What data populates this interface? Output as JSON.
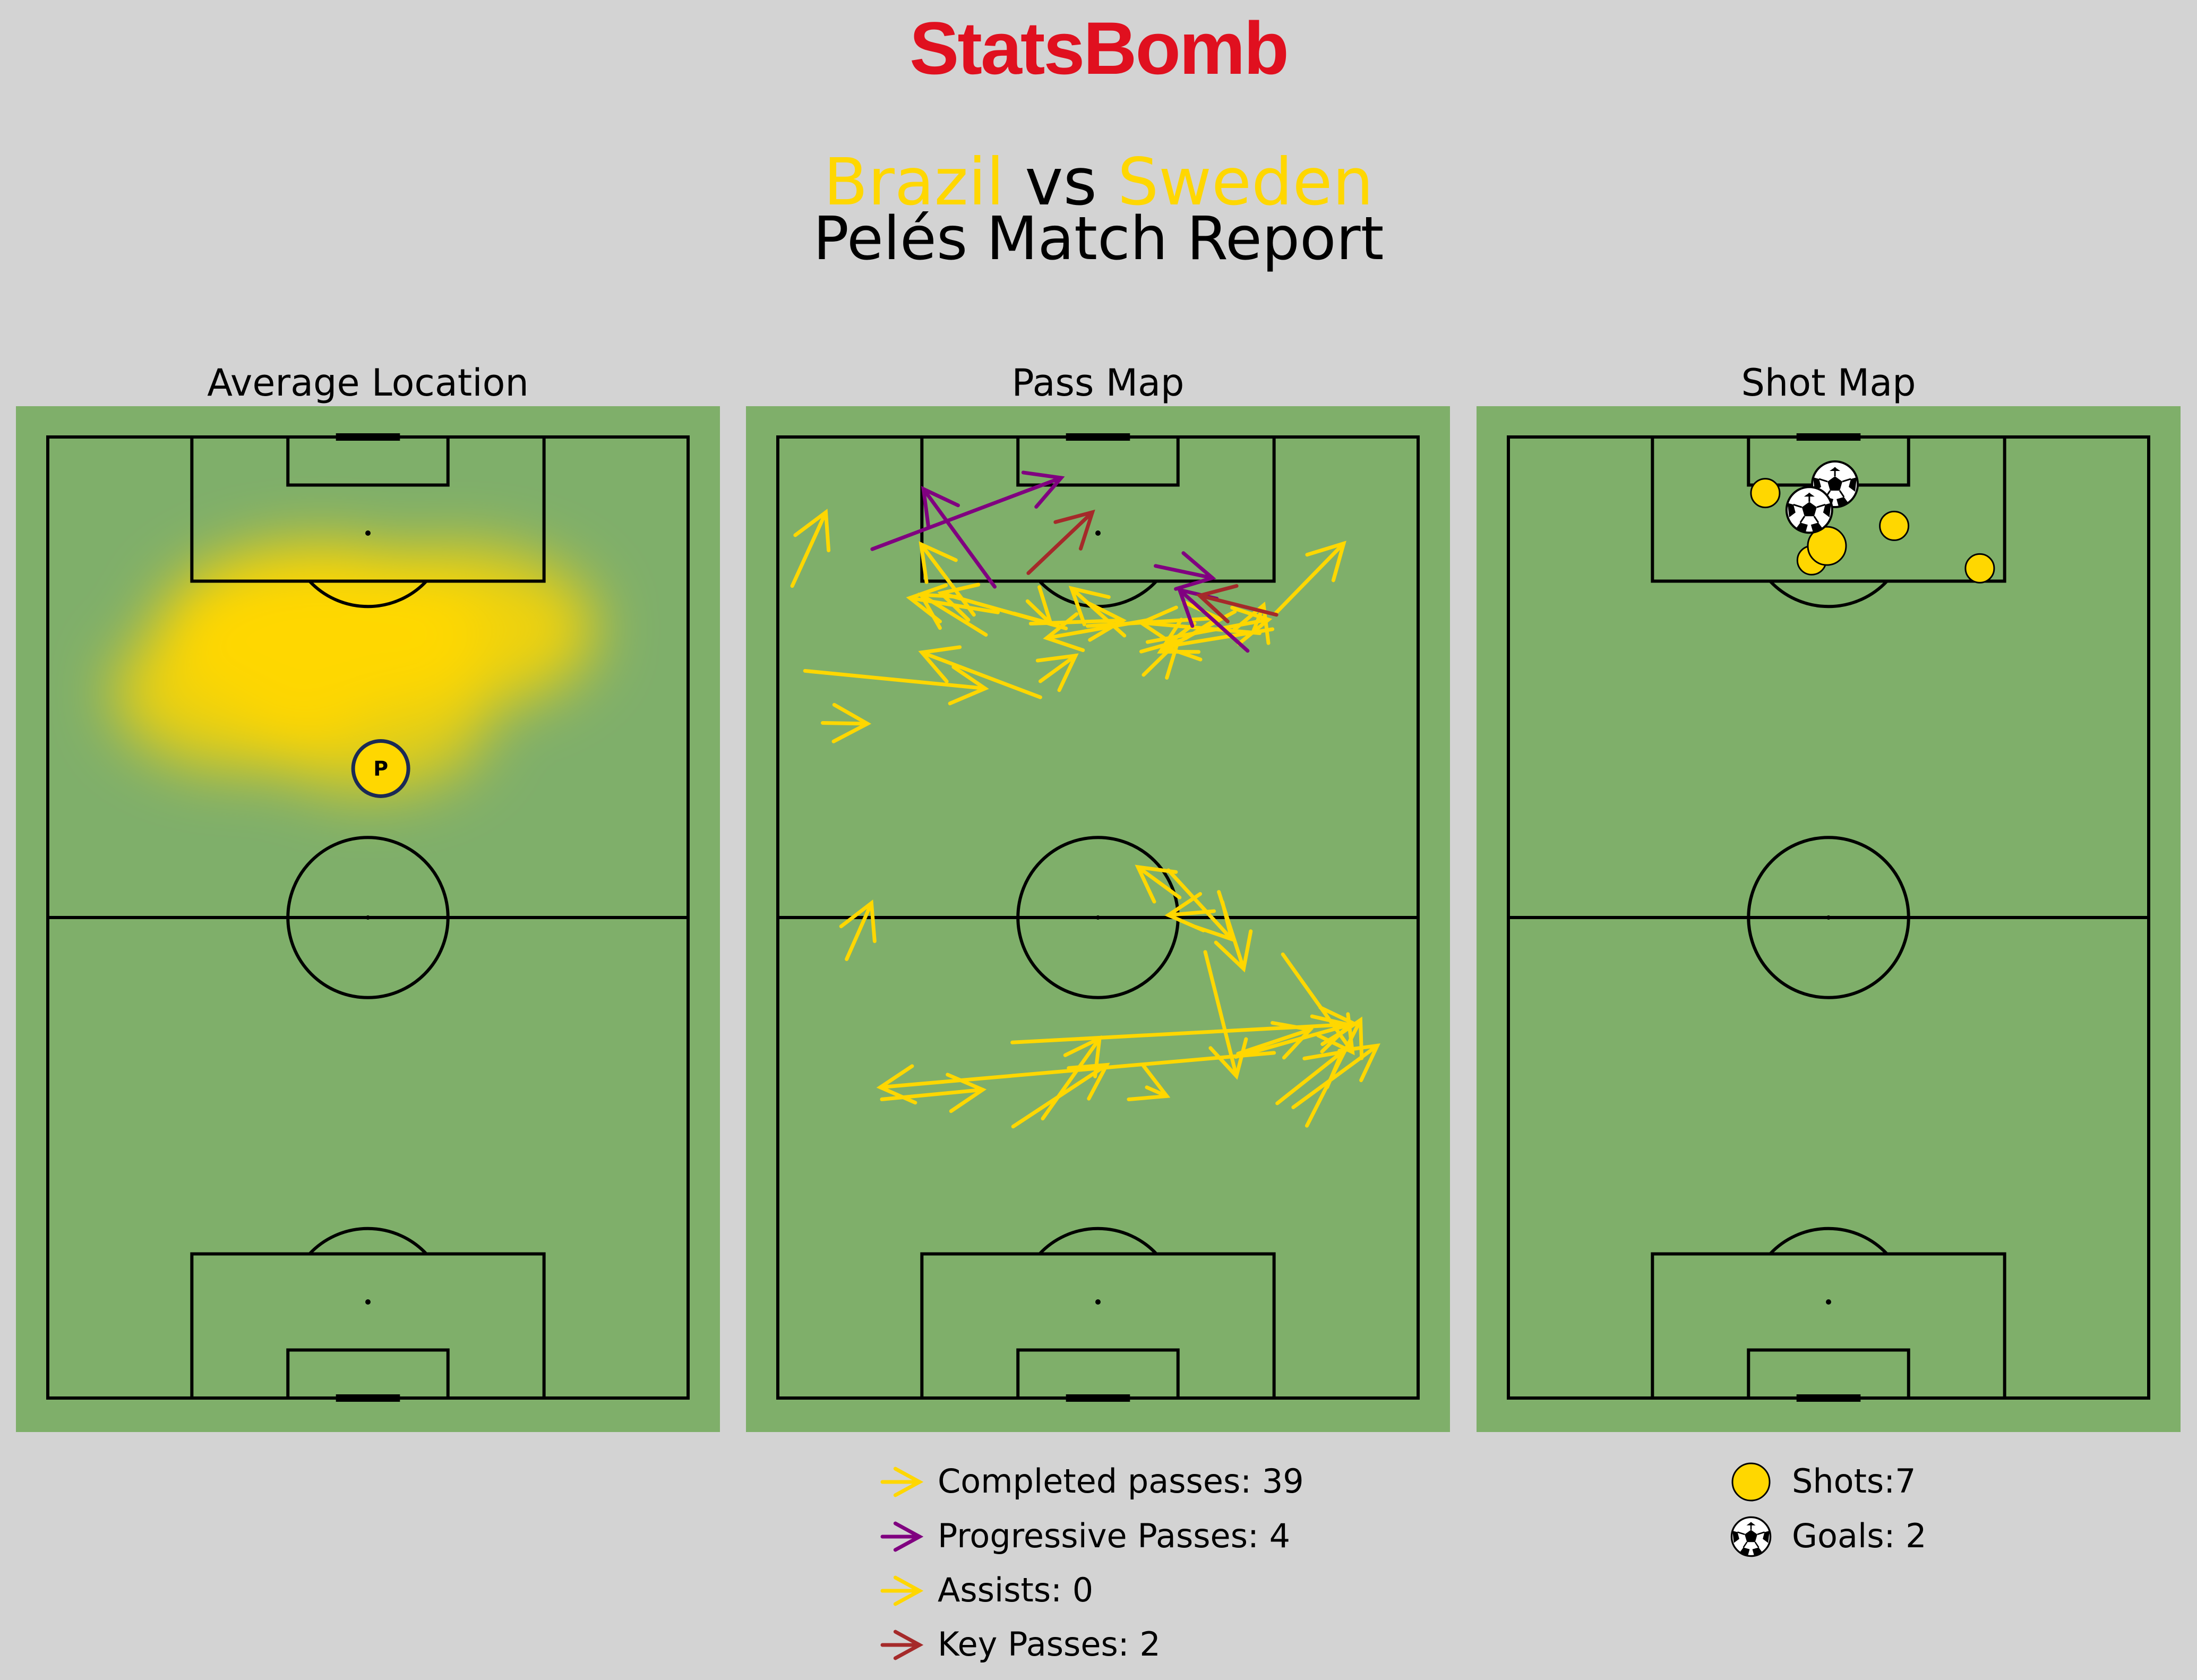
{
  "header": {
    "logo": "StatsBomb",
    "home_team": "Brazil",
    "vs_text": "vs",
    "away_team": "Sweden",
    "subtitle": "Pelés Match Report"
  },
  "colors": {
    "background": "#d3d3d3",
    "pitch": "#7faf6a",
    "team": "#ffd700",
    "completed": "#ffd700",
    "progressive": "#800080",
    "assist": "#ffd700",
    "key_pass": "#a52a2a",
    "logo": "#e0101f"
  },
  "panels": {
    "average_location_title": "Average Location",
    "pass_map_title": "Pass Map",
    "shot_map_title": "Shot Map"
  },
  "player_marker": "P",
  "legend": {
    "completed": "Completed passes: 39",
    "progressive": "Progressive Passes: 4",
    "assists": "Assists: 0",
    "key_passes": "Key Passes: 2",
    "shots": "Shots:7",
    "goals": "Goals: 2"
  },
  "chart_data": [
    {
      "type": "heatmap",
      "title": "Average Location",
      "pitch_orientation": "vertical, attacking upward",
      "average_position": {
        "x": 78.6,
        "y": 41.6
      },
      "density_peaks": [
        {
          "x": 95.3,
          "y": 34.2,
          "weight": 1.0
        },
        {
          "x": 96.1,
          "y": 51.1,
          "weight": 0.7
        },
        {
          "x": 88.1,
          "y": 24.5,
          "weight": 0.6
        },
        {
          "x": 84.6,
          "y": 40.2,
          "weight": 0.45
        }
      ]
    },
    {
      "type": "scatter",
      "title": "Pass Map",
      "pitch_orientation": "vertical, attacking upward",
      "series": [
        {
          "name": "Completed passes",
          "color": "#ffd700",
          "passes": [
            [
              101.4,
              1.8,
              110.6,
              6.0
            ],
            [
              90.8,
              3.4,
              88.6,
              25.9
            ],
            [
              97.8,
              24.5,
              106.6,
              17.9
            ],
            [
              87.5,
              32.8,
              93.1,
              18.0
            ],
            [
              99.5,
              31.2,
              96.7,
              34.1
            ],
            [
              98.0,
              62.2,
              106.7,
              70.7
            ],
            [
              94.4,
              46.2,
              97.2,
              61.3
            ],
            [
              97.2,
              46.6,
              94.9,
              33.6
            ],
            [
              95.3,
              26.0,
              100.3,
              17.9
            ],
            [
              96.1,
              36.0,
              100.5,
              20.4
            ],
            [
              96.7,
              31.6,
              97.1,
              43.1
            ],
            [
              96.4,
              38.7,
              97.4,
              55.0
            ],
            [
              90.3,
              45.7,
              94.5,
              50.0
            ],
            [
              89.5,
              32.8,
              92.7,
              37.2
            ],
            [
              95.7,
              59.4,
              99.0,
              60.7
            ],
            [
              96.0,
              61.8,
              93.8,
              48.3
            ],
            [
              95.5,
              60.2,
              96.8,
              45.4
            ],
            [
              98.2,
              57.1,
              93.2,
              47.8
            ],
            [
              95.2,
              43.3,
              101.1,
              36.7
            ],
            [
              98.1,
              27.5,
              99.9,
              16.5
            ],
            [
              84.3,
              5.6,
              84.2,
              11.2
            ],
            [
              54.8,
              8.6,
              61.8,
              11.7
            ],
            [
              55.7,
              53.4,
              40.2,
              57.3
            ],
            [
              62.5,
              50.2,
              66.3,
              45.0
            ],
            [
              65.9,
              48.8,
              57.3,
              56.7
            ],
            [
              63.2,
              55.1,
              53.6,
              58.2
            ],
            [
              60.8,
              54.5,
              60.3,
              48.8
            ],
            [
              55.4,
              63.1,
              43.2,
              71.8
            ],
            [
              43.0,
              57.5,
              46.0,
              66.5
            ],
            [
              43.1,
              62.0,
              38.8,
              12.8
            ],
            [
              33.9,
              29.4,
              41.6,
              41.1
            ],
            [
              38.8,
              46.1,
              37.7,
              48.6
            ],
            [
              42.6,
              57.2,
              46.6,
              71.4
            ],
            [
              36.8,
              62.4,
              43.2,
              70.5
            ],
            [
              36.3,
              64.4,
              44.0,
              74.9
            ],
            [
              34.0,
              66.1,
              47.2,
              72.8
            ],
            [
              44.4,
              29.3,
              46.7,
              72.1
            ],
            [
              34.9,
              33.1,
              44.9,
              40.2
            ],
            [
              37.3,
              13.0,
              38.5,
              25.6
            ]
          ]
        },
        {
          "name": "Progressive Passes",
          "color": "#800080",
          "passes": [
            [
              106.0,
              11.8,
              114.9,
              35.4
            ],
            [
              101.3,
              27.1,
              113.5,
              18.2
            ],
            [
              93.3,
              58.7,
              100.9,
              50.2
            ],
            [
              103.9,
              47.2,
              102.4,
              54.3
            ]
          ]
        },
        {
          "name": "Key Passes",
          "color": "#a52a2a",
          "passes": [
            [
              103.0,
              31.3,
              110.6,
              39.3
            ],
            [
              97.8,
              62.3,
              100.2,
              52.7
            ]
          ]
        }
      ],
      "counts": {
        "completed": 39,
        "progressive": 4,
        "assists": 0,
        "key_passes": 2
      }
    },
    {
      "type": "scatter",
      "title": "Shot Map",
      "pitch_orientation": "vertical, attacking upward",
      "shots": [
        {
          "x": 108.9,
          "y": 48.2,
          "outcome": "shot"
        },
        {
          "x": 113.0,
          "y": 32.1,
          "outcome": "shot"
        },
        {
          "x": 104.6,
          "y": 37.9,
          "outcome": "shot"
        },
        {
          "x": 103.6,
          "y": 58.9,
          "outcome": "shot"
        },
        {
          "x": 106.4,
          "y": 39.8,
          "outcome": "shot"
        },
        {
          "x": 114.1,
          "y": 40.8,
          "outcome": "goal"
        },
        {
          "x": 110.9,
          "y": 37.6,
          "outcome": "goal"
        }
      ],
      "counts": {
        "shots": 7,
        "goals": 2
      }
    }
  ]
}
